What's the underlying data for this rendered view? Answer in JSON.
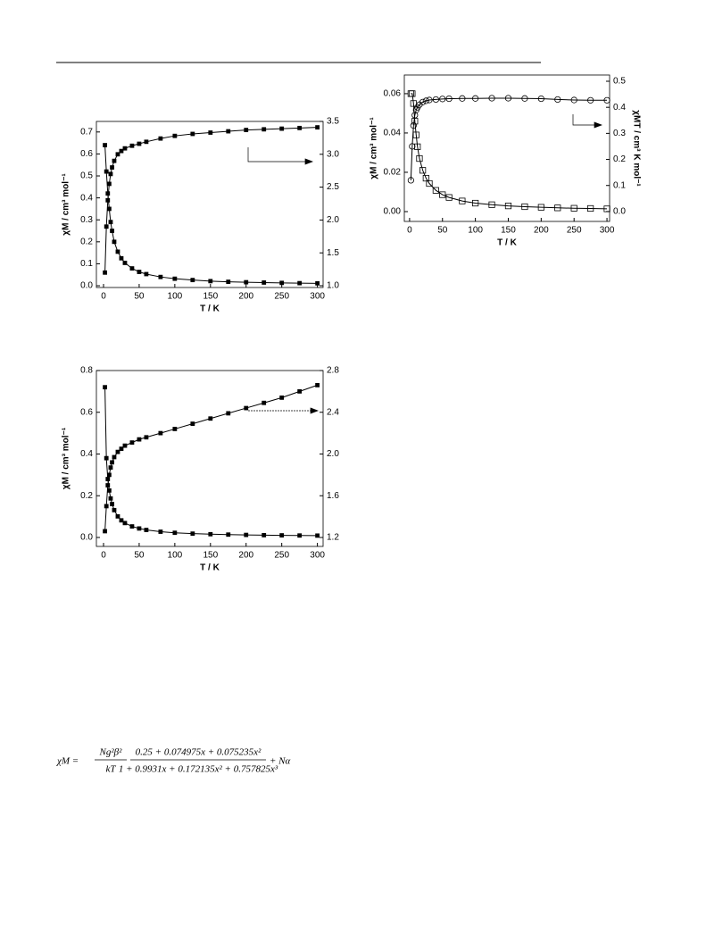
{
  "chart_data": [
    {
      "type": "line",
      "xlabel": "T / K",
      "ylabel": "χM / cm³ mol⁻¹",
      "x": [
        2,
        4,
        6,
        8,
        10,
        12,
        15,
        20,
        25,
        30,
        40,
        50,
        60,
        80,
        100,
        125,
        150,
        175,
        200,
        225,
        250,
        275,
        300
      ],
      "series": [
        {
          "color": "#000000",
          "marker": "square",
          "open": false,
          "values": [
            0.64,
            0.52,
            0.42,
            0.35,
            0.29,
            0.25,
            0.2,
            0.155,
            0.125,
            0.104,
            0.079,
            0.063,
            0.053,
            0.04,
            0.032,
            0.026,
            0.021,
            0.018,
            0.016,
            0.0145,
            0.013,
            0.0118,
            0.011
          ]
        },
        {
          "color": "#000000",
          "marker": "square",
          "open": false,
          "axis": "y2",
          "values": [
            1.2,
            1.9,
            2.3,
            2.55,
            2.7,
            2.8,
            2.9,
            3.0,
            3.05,
            3.09,
            3.13,
            3.16,
            3.19,
            3.24,
            3.28,
            3.31,
            3.33,
            3.35,
            3.37,
            3.38,
            3.39,
            3.4,
            3.41
          ]
        }
      ],
      "xlim": [
        -10,
        308
      ],
      "xticks": [
        0,
        50,
        100,
        150,
        200,
        250,
        300
      ],
      "ylim": [
        -0.008,
        0.748
      ],
      "yticks": [
        {
          "value": 0,
          "label": "0.0"
        },
        {
          "value": 0.1,
          "label": "0.1"
        },
        {
          "value": 0.2,
          "label": "0.2"
        },
        {
          "value": 0.3,
          "label": "0.3"
        },
        {
          "value": 0.4,
          "label": "0.4"
        },
        {
          "value": 0.5,
          "label": "0.5"
        },
        {
          "value": 0.6,
          "label": "0.6"
        },
        {
          "value": 0.7,
          "label": "0.7"
        }
      ],
      "y2lim": [
        0.973,
        3.5
      ],
      "y2ticks": [
        {
          "value": 1,
          "label": "1.0"
        },
        {
          "value": 1.5,
          "label": "1.5"
        },
        {
          "value": 2,
          "label": "2.0"
        },
        {
          "value": 2.5,
          "label": "2.5"
        },
        {
          "value": 3,
          "label": "3.0"
        },
        {
          "value": 3.5,
          "label": "3.5"
        }
      ]
    },
    {
      "type": "line",
      "xlabel": "T / K",
      "ylabel": "χM / cm³ mol⁻¹",
      "x": [
        2,
        4,
        6,
        8,
        10,
        12,
        15,
        20,
        25,
        30,
        40,
        50,
        60,
        80,
        100,
        125,
        150,
        175,
        200,
        225,
        250,
        275,
        300
      ],
      "series": [
        {
          "color": "#000000",
          "marker": "square",
          "open": false,
          "values": [
            0.72,
            0.38,
            0.28,
            0.225,
            0.187,
            0.16,
            0.131,
            0.101,
            0.082,
            0.069,
            0.053,
            0.043,
            0.036,
            0.0275,
            0.0224,
            0.0183,
            0.0156,
            0.0137,
            0.0122,
            0.011,
            0.0102,
            0.0094,
            0.0089
          ]
        },
        {
          "color": "#000000",
          "marker": "square",
          "open": false,
          "axis": "y2",
          "values": [
            1.26,
            1.5,
            1.7,
            1.8,
            1.87,
            1.92,
            1.97,
            2.02,
            2.05,
            2.08,
            2.11,
            2.14,
            2.16,
            2.2,
            2.24,
            2.29,
            2.34,
            2.39,
            2.44,
            2.49,
            2.54,
            2.6,
            2.66
          ]
        }
      ],
      "xlim": [
        -10,
        308
      ],
      "xticks": [
        0,
        50,
        100,
        150,
        200,
        250,
        300
      ],
      "ylim": [
        -0.043,
        0.8
      ],
      "yticks": [
        {
          "value": 0,
          "label": "0.0"
        },
        {
          "value": 0.2,
          "label": "0.2"
        },
        {
          "value": 0.4,
          "label": "0.4"
        },
        {
          "value": 0.6,
          "label": "0.6"
        },
        {
          "value": 0.8,
          "label": "0.8"
        }
      ],
      "y2lim": [
        1.114,
        2.8
      ],
      "y2ticks": [
        {
          "value": 1.2,
          "label": "1.2"
        },
        {
          "value": 1.6,
          "label": "1.6"
        },
        {
          "value": 2,
          "label": "2.0"
        },
        {
          "value": 2.4,
          "label": "2.4"
        },
        {
          "value": 2.8,
          "label": "2.8"
        }
      ]
    },
    {
      "type": "line",
      "xlabel": "T / K",
      "ylabel": "χM / cm³ mol⁻¹",
      "y2label": "χMT / cm³ K mol⁻¹",
      "x": [
        2,
        4,
        6,
        8,
        10,
        12,
        15,
        20,
        25,
        30,
        40,
        50,
        60,
        80,
        100,
        125,
        150,
        175,
        200,
        225,
        250,
        275,
        300
      ],
      "series": [
        {
          "color": "#000000",
          "marker": "square",
          "open": true,
          "values": [
            0.06,
            0.06,
            0.055,
            0.046,
            0.039,
            0.033,
            0.027,
            0.021,
            0.017,
            0.0143,
            0.0108,
            0.0086,
            0.0072,
            0.0054,
            0.0043,
            0.0035,
            0.0029,
            0.0025,
            0.0022,
            0.0019,
            0.0017,
            0.0016,
            0.0014
          ]
        },
        {
          "color": "#000000",
          "marker": "circle",
          "open": true,
          "axis": "y2",
          "values": [
            0.12,
            0.25,
            0.33,
            0.37,
            0.39,
            0.4,
            0.41,
            0.42,
            0.425,
            0.428,
            0.43,
            0.432,
            0.433,
            0.434,
            0.434,
            0.435,
            0.435,
            0.434,
            0.433,
            0.43,
            0.428,
            0.427,
            0.427
          ]
        }
      ],
      "xlim": [
        -8,
        304
      ],
      "xticks": [
        0,
        50,
        100,
        150,
        200,
        250,
        300
      ],
      "ylim": [
        -0.005,
        0.0695
      ],
      "yticks": [
        {
          "value": 0,
          "label": "0.00"
        },
        {
          "value": 0.02,
          "label": "0.02"
        },
        {
          "value": 0.04,
          "label": "0.04"
        },
        {
          "value": 0.06,
          "label": "0.06"
        }
      ],
      "y2lim": [
        -0.038,
        0.524
      ],
      "y2ticks": [
        {
          "value": 0,
          "label": "0.0"
        },
        {
          "value": 0.1,
          "label": "0.1"
        },
        {
          "value": 0.2,
          "label": "0.2"
        },
        {
          "value": 0.3,
          "label": "0.3"
        },
        {
          "value": 0.4,
          "label": "0.4"
        },
        {
          "value": 0.5,
          "label": "0.5"
        }
      ]
    }
  ],
  "equation": {
    "lhs": "χM =",
    "pre_num": "Ng²β²",
    "pre_den": "kT",
    "num": "0.25 + 0.074975x + 0.075235x²",
    "den": "1 + 0.9931x + 0.172135x² + 0.757825x³",
    "tail": "+ Nα"
  }
}
